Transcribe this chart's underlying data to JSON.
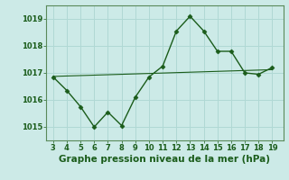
{
  "x": [
    3,
    4,
    5,
    6,
    7,
    8,
    9,
    10,
    11,
    12,
    13,
    14,
    15,
    16,
    17,
    18,
    19
  ],
  "y": [
    1016.85,
    1016.35,
    1015.75,
    1015.0,
    1015.55,
    1015.05,
    1016.1,
    1016.85,
    1017.25,
    1018.55,
    1019.1,
    1018.55,
    1017.8,
    1017.8,
    1017.0,
    1016.95,
    1017.2
  ],
  "trend_x": [
    3,
    19
  ],
  "trend_y": [
    1016.87,
    1017.12
  ],
  "line_color": "#1a5c1a",
  "bg_color": "#cceae7",
  "grid_color": "#b0d8d4",
  "xlabel": "Graphe pression niveau de la mer (hPa)",
  "yticks": [
    1015,
    1016,
    1017,
    1018,
    1019
  ],
  "xticks": [
    3,
    4,
    5,
    6,
    7,
    8,
    9,
    10,
    11,
    12,
    13,
    14,
    15,
    16,
    17,
    18,
    19
  ],
  "ylim": [
    1014.5,
    1019.5
  ],
  "xlim": [
    2.5,
    19.8
  ],
  "marker": "D",
  "markersize": 2.5,
  "linewidth": 1.0,
  "xlabel_fontsize": 7.5,
  "tick_fontsize": 6.0,
  "xlabel_color": "#1a5c1a",
  "tick_color": "#1a5c1a",
  "spine_color": "#5a8a5a"
}
